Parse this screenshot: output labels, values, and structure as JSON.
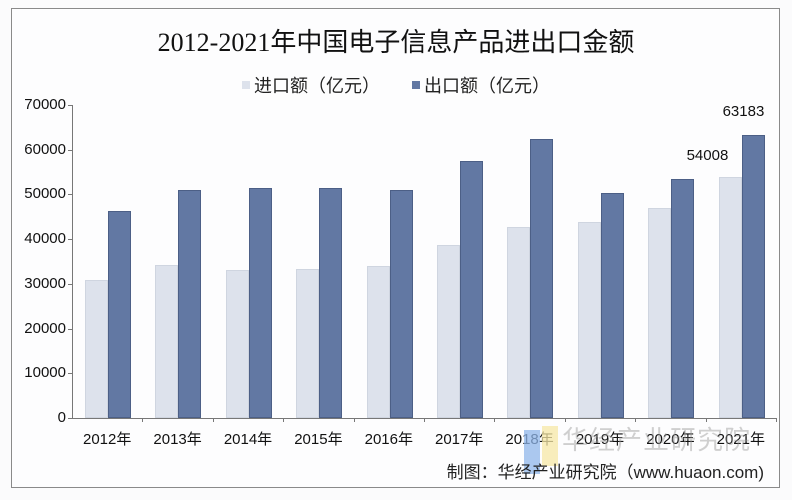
{
  "chart_data": {
    "type": "bar",
    "title": "2012-2021年中国电子信息产品进出口金额",
    "xlabel": "",
    "ylabel": "",
    "ylim": [
      0,
      70000
    ],
    "yticks": [
      0,
      10000,
      20000,
      30000,
      40000,
      50000,
      60000,
      70000
    ],
    "grid": false,
    "legend_position": "top",
    "categories": [
      "2012年",
      "2013年",
      "2014年",
      "2015年",
      "2016年",
      "2017年",
      "2018年",
      "2019年",
      "2020年",
      "2021年"
    ],
    "series": [
      {
        "name": "进口额（亿元）",
        "color": "#dde2ec",
        "values": [
          30900,
          34200,
          33000,
          33300,
          33900,
          38700,
          42700,
          43900,
          46900,
          54008
        ]
      },
      {
        "name": "出口额（亿元）",
        "color": "#6278a3",
        "values": [
          46400,
          51100,
          51500,
          51500,
          51100,
          57400,
          62300,
          50300,
          53500,
          63183
        ]
      }
    ],
    "annotations": [
      {
        "category": "2021年",
        "series": "进口额（亿元）",
        "text": "54008"
      },
      {
        "category": "2021年",
        "series": "出口额（亿元）",
        "text": "63183"
      }
    ]
  },
  "title": "2012-2021年中国电子信息产品进出口金额",
  "legend": [
    "进口额（亿元）",
    "出口额（亿元）"
  ],
  "yticks": [
    "70000",
    "60000",
    "50000",
    "40000",
    "30000",
    "20000",
    "10000",
    "0"
  ],
  "source": "制图：华经产业研究院（www.huaon.com)",
  "watermark": "华经产业研究院"
}
